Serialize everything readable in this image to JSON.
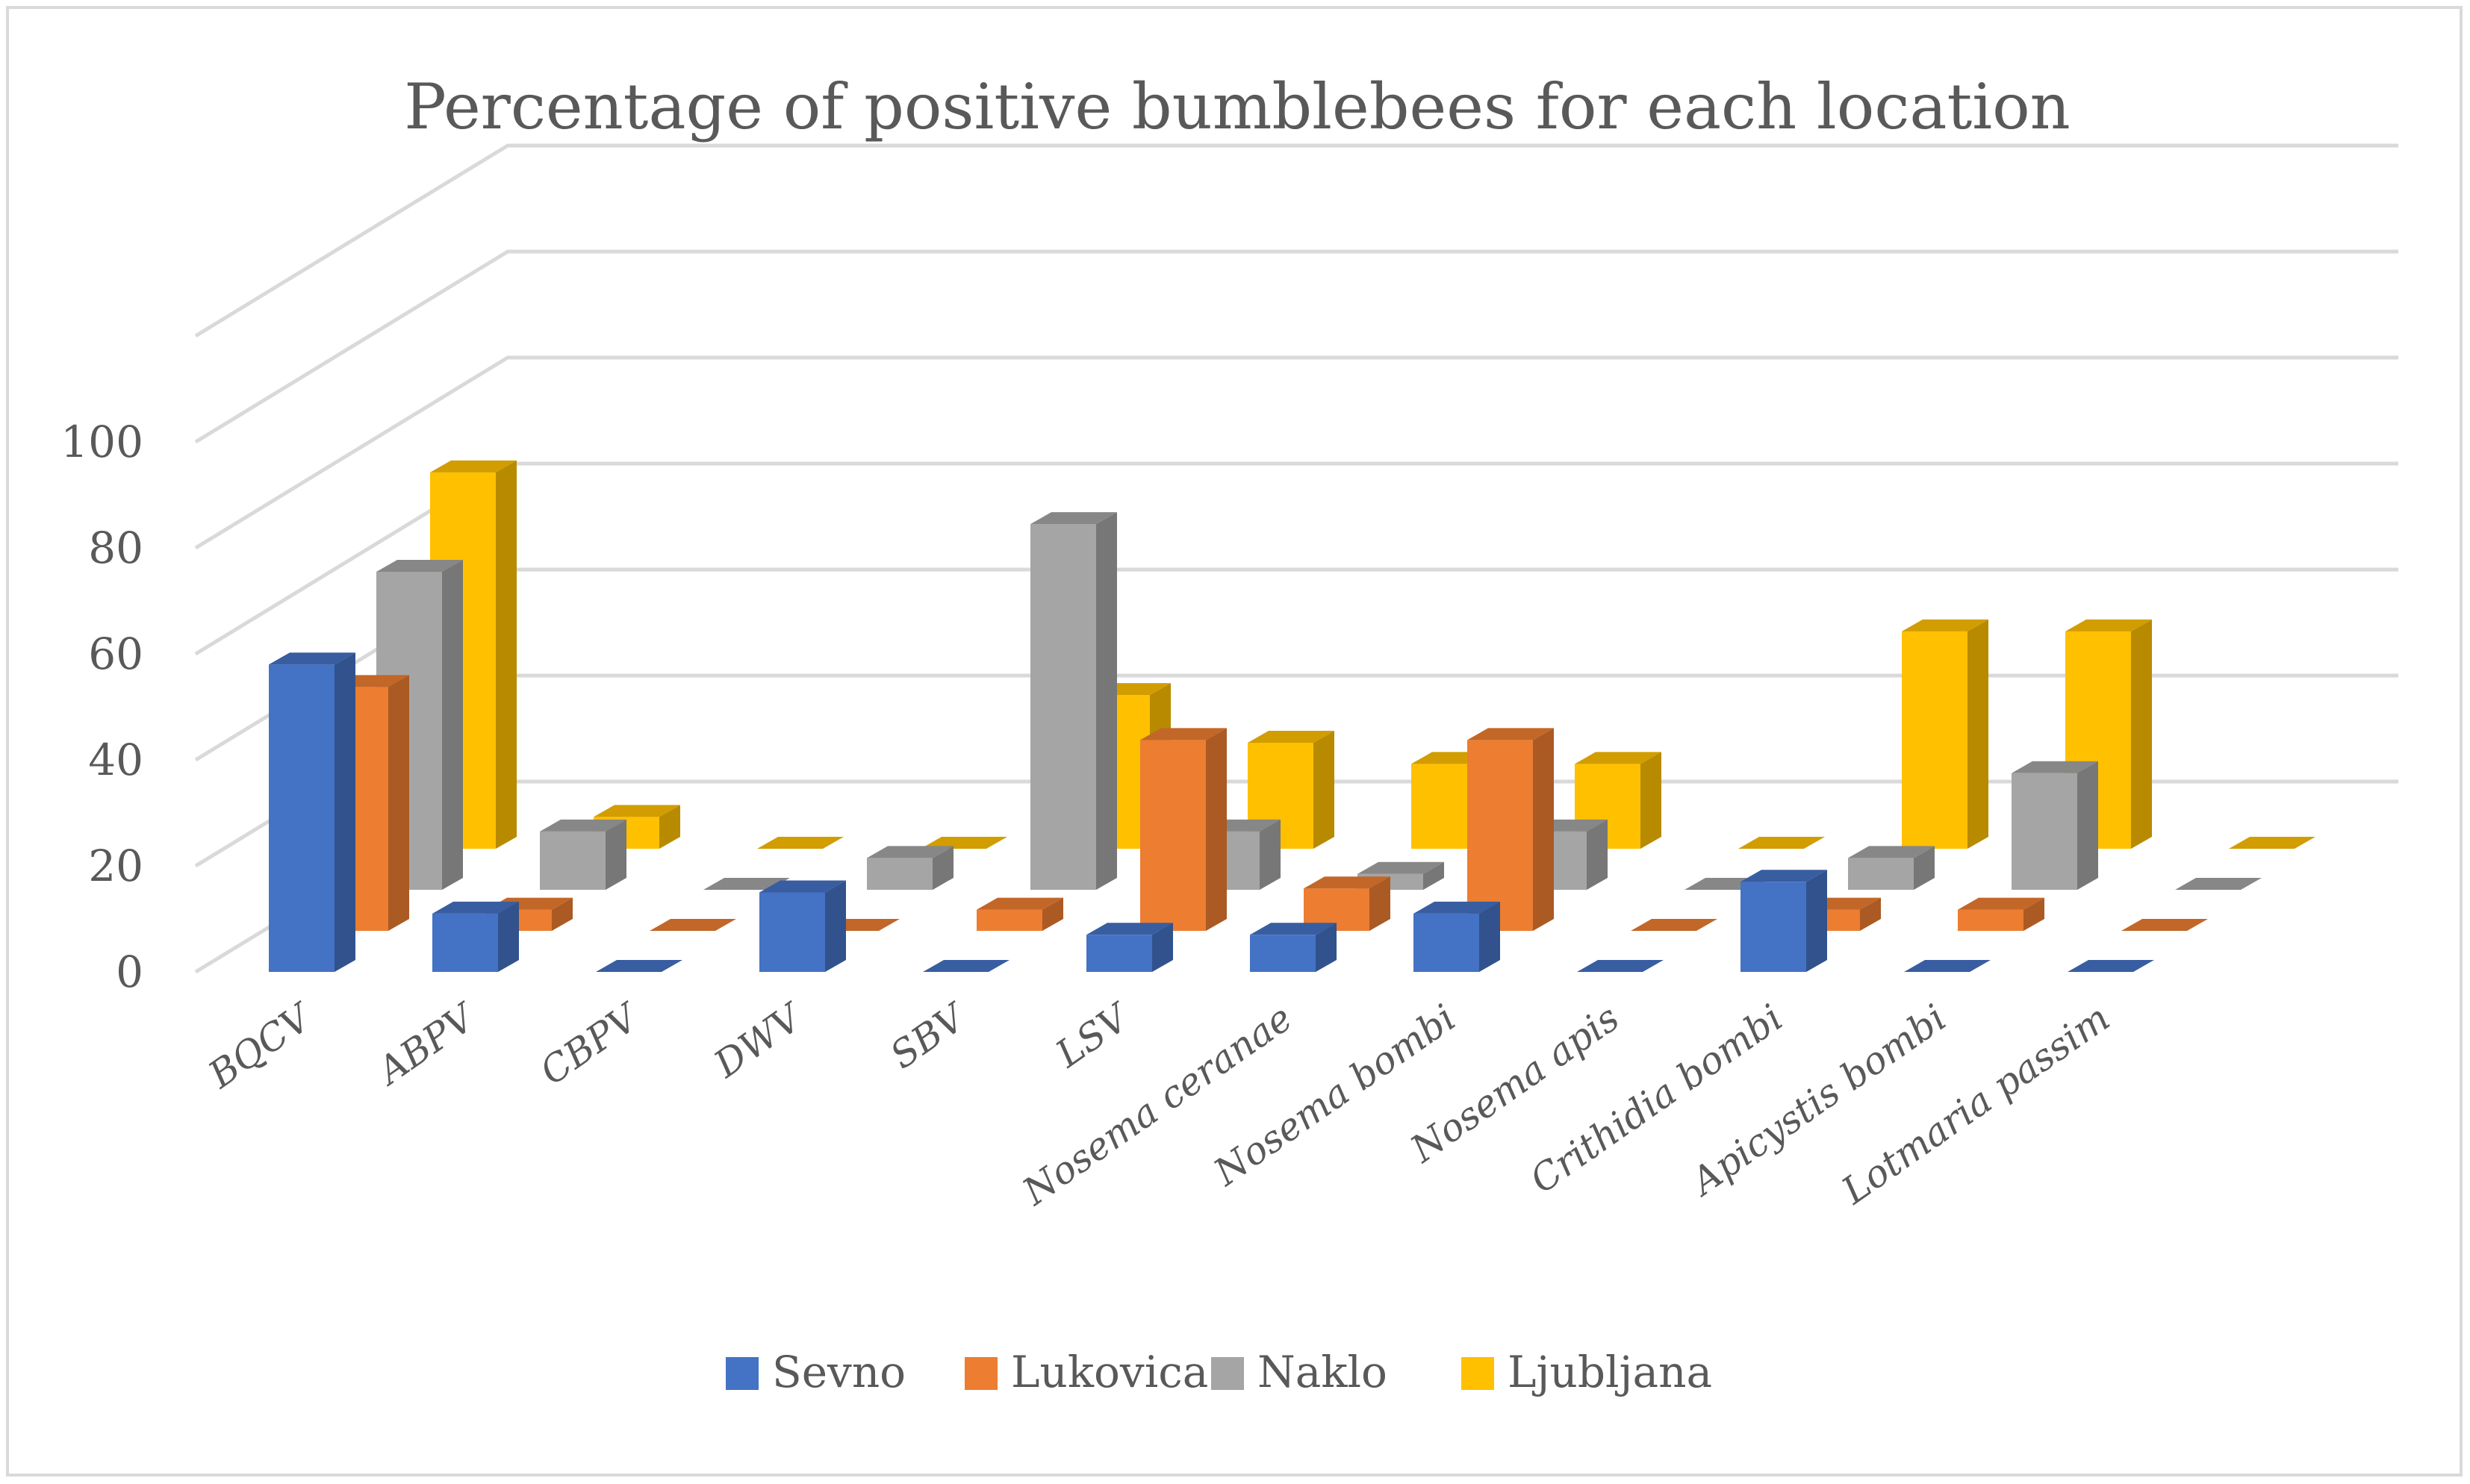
{
  "chart_data": {
    "type": "bar",
    "style": "3d-clustered-column",
    "title": "Percentage of positive bumblebees for each location",
    "xlabel": "",
    "ylabel": "",
    "ylim": [
      0,
      100
    ],
    "yticks": [
      "0",
      "20",
      "40",
      "60",
      "80",
      "100"
    ],
    "grid": true,
    "legend_position": "bottom",
    "categories": [
      "BQCV",
      "ABPV",
      "CBPV",
      "DWV",
      "SBV",
      "LSV",
      "Nosema ceranae",
      "Nosema bombi",
      "Nosema apis",
      "Crithidia bombi",
      "Apicystis bombi",
      "Lotmaria passim"
    ],
    "series": [
      {
        "name": "Sevno",
        "color": "#4472c4",
        "values": [
          58,
          11,
          0,
          15,
          0,
          7,
          7,
          11,
          0,
          17,
          0,
          0
        ]
      },
      {
        "name": "Lukovica",
        "color": "#ed7d31",
        "values": [
          46,
          4,
          0,
          0,
          4,
          36,
          8,
          36,
          0,
          4,
          4,
          0
        ]
      },
      {
        "name": "Naklo",
        "color": "#a5a5a5",
        "values": [
          60,
          11,
          0,
          6,
          69,
          11,
          3,
          11,
          0,
          6,
          22,
          0
        ]
      },
      {
        "name": "Ljubljana",
        "color": "#ffc000",
        "values": [
          71,
          6,
          0,
          0,
          29,
          20,
          16,
          16,
          0,
          41,
          41,
          0
        ]
      }
    ]
  }
}
